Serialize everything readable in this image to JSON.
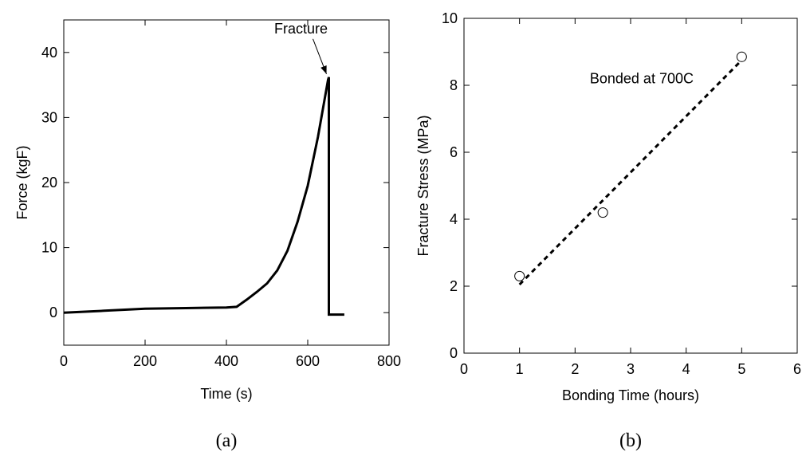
{
  "chart_data": [
    {
      "type": "line",
      "xlabel": "Time (s)",
      "ylabel": "Force (kgF)",
      "caption": "(a)",
      "xlim": [
        0,
        800
      ],
      "ylim": [
        -5,
        45
      ],
      "xticks": [
        0,
        200,
        400,
        600,
        800
      ],
      "yticks": [
        0,
        10,
        20,
        30,
        40
      ],
      "grid": false,
      "series": [
        {
          "color": "#000000",
          "points": [
            [
              0,
              0
            ],
            [
              100,
              0.3
            ],
            [
              200,
              0.6
            ],
            [
              300,
              0.7
            ],
            [
              400,
              0.8
            ],
            [
              425,
              0.9
            ],
            [
              450,
              2
            ],
            [
              475,
              3.2
            ],
            [
              500,
              4.5
            ],
            [
              525,
              6.5
            ],
            [
              550,
              9.5
            ],
            [
              575,
              14
            ],
            [
              600,
              19.5
            ],
            [
              625,
              27
            ],
            [
              650,
              35.8
            ],
            [
              652,
              36.2
            ],
            [
              652,
              -0.3
            ],
            [
              690,
              -0.3
            ]
          ]
        }
      ],
      "annotation": {
        "text": "Fracture",
        "x": 652,
        "y": 36.2
      }
    },
    {
      "type": "scatter",
      "xlabel": "Bonding Time (hours)",
      "ylabel": "Fracture Stress (MPa)",
      "caption": "(b)",
      "xlim": [
        0,
        6
      ],
      "ylim": [
        0,
        10
      ],
      "xticks": [
        0,
        1,
        2,
        3,
        4,
        5,
        6
      ],
      "yticks": [
        0,
        2,
        4,
        6,
        8,
        10
      ],
      "grid": false,
      "series": [
        {
          "marker": "open-circle",
          "x": [
            1,
            2.5,
            5
          ],
          "y": [
            2.3,
            4.2,
            8.85
          ]
        }
      ],
      "fit_line": {
        "style": "dashed",
        "x": [
          1,
          5
        ],
        "y": [
          2.05,
          8.75
        ]
      },
      "annotation": {
        "text": "Bonded at 700C",
        "x": 3.2,
        "y": 8.2
      }
    }
  ]
}
